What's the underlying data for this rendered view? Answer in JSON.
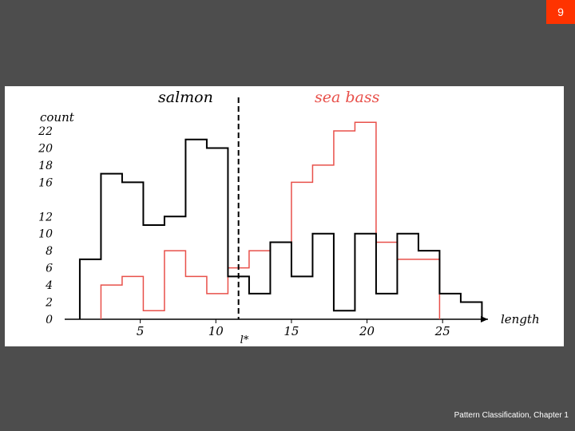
{
  "slide": {
    "number": "9",
    "footer": "Pattern Classification, Chapter 1"
  },
  "colors": {
    "salmon": "#000000",
    "sea_bass": "#e8504a",
    "background": "#4d4d4d",
    "badge": "#ff3300"
  },
  "chart_data": {
    "type": "histogram",
    "title": "",
    "xlabel": "length",
    "ylabel": "count",
    "xlim": [
      0,
      28
    ],
    "ylim": [
      0,
      22
    ],
    "x_ticks": [
      5,
      10,
      15,
      20,
      25
    ],
    "y_ticks": [
      0,
      2,
      4,
      6,
      8,
      10,
      12,
      16,
      18,
      20,
      22
    ],
    "grid": false,
    "threshold": {
      "label": "l*",
      "x": 11.5
    },
    "series": [
      {
        "name": "salmon",
        "color": "#000000",
        "bin_edges": [
          1,
          2.4,
          3.8,
          5.2,
          6.6,
          8,
          9.4,
          10.8,
          12.2,
          13.6,
          15,
          16.4,
          17.8,
          19.2,
          20.6,
          22,
          23.4,
          24.8,
          26.2,
          27.6
        ],
        "counts": [
          7,
          17,
          16,
          11,
          12,
          21,
          20,
          5,
          3,
          9,
          5,
          10,
          1,
          10,
          3,
          10,
          8,
          3,
          2
        ]
      },
      {
        "name": "sea bass",
        "color": "#e8504a",
        "bin_edges": [
          2.4,
          3.8,
          5.2,
          6.6,
          8,
          9.4,
          10.8,
          12.2,
          13.6,
          15,
          16.4,
          17.8,
          19.2,
          20.6,
          22,
          23.4,
          24.8
        ],
        "counts": [
          4,
          5,
          1,
          8,
          5,
          3,
          6,
          8,
          9,
          16,
          18,
          22,
          23,
          9,
          7,
          7
        ]
      }
    ]
  }
}
